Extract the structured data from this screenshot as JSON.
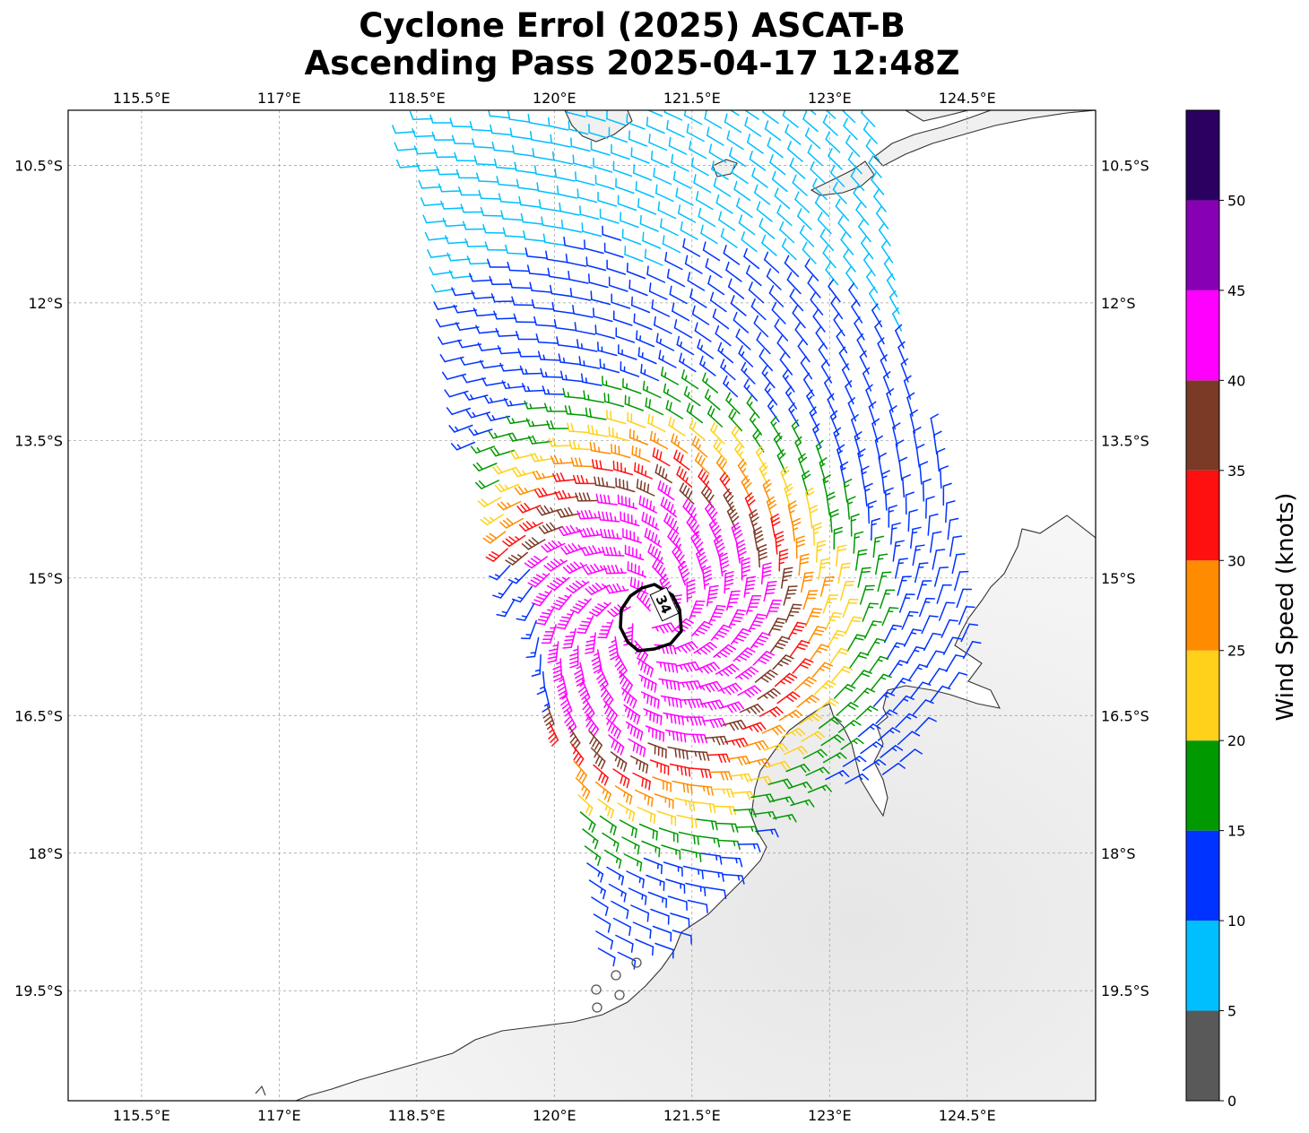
{
  "title_line1": "Cyclone Errol (2025) ASCAT-B",
  "title_line2": "Ascending Pass 2025-04-17 12:48Z",
  "map": {
    "lon_ticks": [
      {
        "value": 115.5,
        "label": "115.5°E"
      },
      {
        "value": 117.0,
        "label": "117°E"
      },
      {
        "value": 118.5,
        "label": "118.5°E"
      },
      {
        "value": 120.0,
        "label": "120°E"
      },
      {
        "value": 121.5,
        "label": "121.5°E"
      },
      {
        "value": 123.0,
        "label": "123°E"
      },
      {
        "value": 124.5,
        "label": "124.5°E"
      }
    ],
    "lat_ticks": [
      {
        "value": -10.5,
        "label": "10.5°S"
      },
      {
        "value": -12.0,
        "label": "12°S"
      },
      {
        "value": -13.5,
        "label": "13.5°S"
      },
      {
        "value": -15.0,
        "label": "15°S"
      },
      {
        "value": -16.5,
        "label": "16.5°S"
      },
      {
        "value": -18.0,
        "label": "18°S"
      },
      {
        "value": -19.5,
        "label": "19.5°S"
      }
    ],
    "lon_range": [
      114.7,
      125.9
    ],
    "lat_range": [
      -9.9,
      -20.7
    ],
    "contour_label": "34",
    "storm_center": {
      "lon": 121.0,
      "lat": -15.45
    },
    "wind_barb_field": "ASCAT-B wind vectors, cyclonic (clockwise) circulation"
  },
  "colorbar": {
    "label": "Wind Speed (knots)",
    "tick_labels": [
      "0",
      "5",
      "10",
      "15",
      "20",
      "25",
      "30",
      "35",
      "40",
      "45",
      "50"
    ],
    "bins": [
      {
        "from": 0,
        "to": 5,
        "color": "#595959"
      },
      {
        "from": 5,
        "to": 10,
        "color": "#00bfff"
      },
      {
        "from": 10,
        "to": 15,
        "color": "#0033ff"
      },
      {
        "from": 15,
        "to": 20,
        "color": "#009900"
      },
      {
        "from": 20,
        "to": 25,
        "color": "#ffd11a"
      },
      {
        "from": 25,
        "to": 30,
        "color": "#ff8c00"
      },
      {
        "from": 30,
        "to": 35,
        "color": "#ff1010"
      },
      {
        "from": 35,
        "to": 40,
        "color": "#7a3a26"
      },
      {
        "from": 40,
        "to": 45,
        "color": "#ff00ff"
      },
      {
        "from": 45,
        "to": 50,
        "color": "#8800b3"
      },
      {
        "from": 50,
        "to": 55,
        "color": "#2a0060"
      }
    ]
  }
}
